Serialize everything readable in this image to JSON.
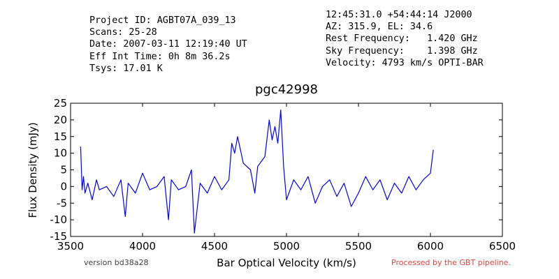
{
  "header": {
    "left_lines": [
      "Project ID: AGBT07A_039_13",
      "Scans: 25-28",
      "Date: 2007-03-11 12:19:40 UT",
      "Eff Int Time: 0h 8m 36.2s",
      "Tsys: 17.01 K"
    ],
    "right_lines": [
      "12:45:31.0 +54:44:14 J2000",
      "AZ: 315.9, EL: 34.6",
      "Rest Frequency:   1.420 GHz",
      "Sky Frequency:    1.398 GHz",
      "Velocity: 4793 km/s OPTI-BAR"
    ]
  },
  "footer": {
    "version": "version bd38a28",
    "pipeline": "Processed by the GBT pipeline."
  },
  "colors": {
    "line": "#0000ff",
    "pipeline_text": "#e8413d"
  },
  "chart_data": {
    "type": "line",
    "title": "pgc42998",
    "xlabel": "Bar Optical Velocity (km/s)",
    "ylabel": "Flux Density (mJy)",
    "xlim": [
      3500,
      6500
    ],
    "ylim": [
      -15,
      25
    ],
    "xticks": [
      3500,
      4000,
      4500,
      5000,
      5500,
      6000,
      6500
    ],
    "yticks": [
      -15,
      -10,
      -5,
      0,
      5,
      10,
      15,
      20,
      25
    ],
    "grid": false,
    "legend": "none",
    "series": [
      {
        "x": [
          3570,
          3580,
          3590,
          3600,
          3620,
          3650,
          3680,
          3700,
          3750,
          3800,
          3850,
          3880,
          3900,
          3950,
          4000,
          4050,
          4100,
          4150,
          4180,
          4200,
          4250,
          4300,
          4340,
          4360,
          4400,
          4450,
          4500,
          4550,
          4600,
          4620,
          4640,
          4660,
          4700,
          4750,
          4780,
          4800,
          4850,
          4880,
          4900,
          4920,
          4940,
          4960,
          4980,
          5000,
          5050,
          5100,
          5150,
          5200,
          5250,
          5300,
          5350,
          5400,
          5450,
          5500,
          5550,
          5600,
          5650,
          5700,
          5750,
          5800,
          5850,
          5900,
          5950,
          6000,
          6020
        ],
        "y": [
          12,
          -1,
          3,
          -2,
          1,
          -4,
          2,
          -1,
          0,
          -3,
          2,
          -9,
          1,
          -2,
          4,
          -1,
          0,
          3,
          -10,
          2,
          -1,
          0,
          5,
          -14,
          1,
          -2,
          3,
          -1,
          2,
          13,
          10,
          15,
          7,
          5,
          -2,
          6,
          9,
          20,
          14,
          18,
          13,
          23,
          6,
          -4,
          2,
          -1,
          3,
          -5,
          0,
          2,
          -3,
          1,
          -6,
          -2,
          3,
          -1,
          2,
          -4,
          1,
          -2,
          3,
          -1,
          2,
          4,
          11
        ]
      }
    ]
  }
}
